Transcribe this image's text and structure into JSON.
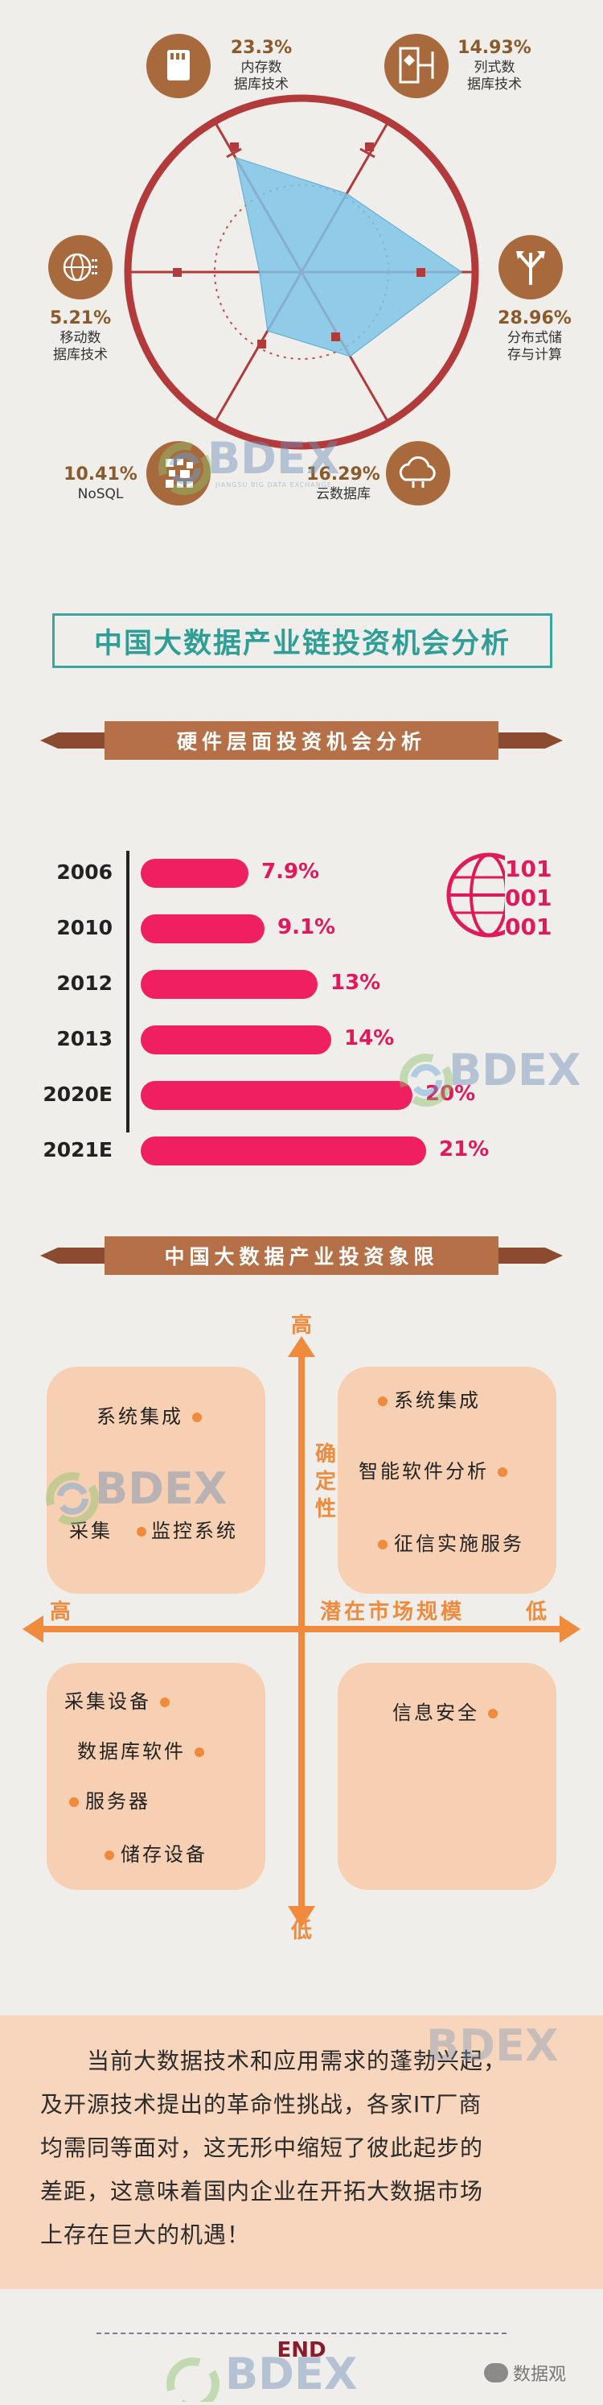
{
  "radar": {
    "items": [
      {
        "pct": "23.3%",
        "line1": "内存数",
        "line2": "据库技术",
        "icon": "sd-card-icon"
      },
      {
        "pct": "14.93%",
        "line1": "列式数",
        "line2": "据库技术",
        "icon": "column-db-icon"
      },
      {
        "pct": "28.96%",
        "line1": "分布式储",
        "line2": "存与计算",
        "icon": "distributed-icon"
      },
      {
        "pct": "16.29%",
        "line1": "云数据库",
        "line2": "",
        "icon": "cloud-icon"
      },
      {
        "pct": "10.41%",
        "line1": "NoSQL",
        "line2": "",
        "icon": "nosql-icon"
      },
      {
        "pct": "5.21%",
        "line1": "移动数",
        "line2": "据库技术",
        "icon": "globe-icon"
      }
    ]
  },
  "watermark": {
    "text": "BDEX",
    "sub": "JIANGSU BIG DATA EXCHANGE"
  },
  "main_title": "中国大数据产业链投资机会分析",
  "section1": {
    "title": "硬件层面投资机会分析"
  },
  "bars": [
    {
      "year": "2006",
      "label": "7.9%",
      "value": 7.9
    },
    {
      "year": "2010",
      "label": "9.1%",
      "value": 9.1
    },
    {
      "year": "2012",
      "label": "13%",
      "value": 13
    },
    {
      "year": "2013",
      "label": "14%",
      "value": 14
    },
    {
      "year": "2020E",
      "label": "20%",
      "value": 20
    },
    {
      "year": "2021E",
      "label": "21%",
      "value": 21
    }
  ],
  "binary": [
    "101",
    "001",
    "001"
  ],
  "section2": {
    "title": "中国大数据产业投资象限"
  },
  "quadrant": {
    "y_high": "高",
    "y_low": "低",
    "y_axis": [
      "确",
      "定",
      "性"
    ],
    "x_high": "高",
    "x_low": "低",
    "x_axis": "潜在市场规模",
    "tl": [
      "系统集成",
      "采集",
      "监控系统"
    ],
    "tr": [
      "系统集成",
      "智能软件分析",
      "征信实施服务"
    ],
    "bl": [
      "采集设备",
      "数据库软件",
      "服务器",
      "储存设备"
    ],
    "br": [
      "信息安全"
    ]
  },
  "paragraph": [
    "　　当前大数据技术和应用需求的蓬勃兴起，",
    "及开源技术提出的革命性挑战，各家IT厂商",
    "均需同等面对，这无形中缩短了彼此起步的",
    "差距，这意味着国内企业在开拓大数据市场",
    "上存在巨大的机遇！"
  ],
  "end": "END",
  "footer_brand": "数据观",
  "colors": {
    "brown": "#a86a3c",
    "red_ring": "#b23a3a",
    "pink": "#ef1f62",
    "orange": "#f08a3c",
    "teal": "#2e9e96",
    "radar_fill": "#7fc4e8"
  }
}
